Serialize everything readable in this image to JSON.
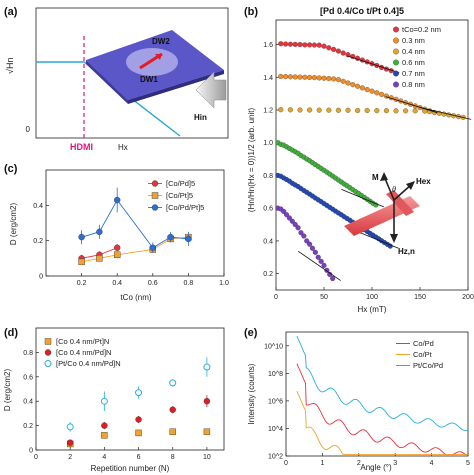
{
  "figure": {
    "panel_labels": [
      "(a)",
      "(b)",
      "(c)",
      "(d)",
      "(e)"
    ]
  },
  "panel_a": {
    "ylabel": "√Hn",
    "zero_label": "0",
    "hdmi_label": "HDMI",
    "xlabel": "Hx",
    "dw1_label": "DW1",
    "dw2_label": "DW2",
    "hin_label": "Hin",
    "colors": {
      "curve": "#29a7d6",
      "dmi_line": "#e0177a",
      "film": "#4a46b8",
      "arrow": "#e31b23"
    }
  },
  "chart_data": [
    {
      "id": "b",
      "type": "scatter",
      "title": "[Pd 0.4/Co t/Pt 0.4]5",
      "xlabel": "Hx (mT)",
      "ylabel": "(Hn/Hn(Hx = 0))1/2 (arb. unit)",
      "xlim": [
        0,
        200
      ],
      "ylim": [
        0.1,
        1.75
      ],
      "xticks": [
        0,
        50,
        100,
        150,
        200
      ],
      "yticks": [
        0.2,
        0.4,
        0.6,
        0.8,
        1.0,
        1.2,
        1.4,
        1.6
      ],
      "legend_position": "top-right",
      "series": [
        {
          "name": "tCo=0.2 nm",
          "color": "#e8323c",
          "x": [
            5,
            10,
            15,
            20,
            25,
            30,
            35,
            40,
            45,
            50,
            55,
            60,
            65,
            70,
            75,
            80,
            85,
            90,
            95,
            100,
            105,
            110,
            115,
            120
          ],
          "y": [
            1.605,
            1.603,
            1.602,
            1.601,
            1.6,
            1.598,
            1.598,
            1.597,
            1.596,
            1.59,
            1.58,
            1.57,
            1.56,
            1.548,
            1.538,
            1.527,
            1.516,
            1.505,
            1.494,
            1.483,
            1.472,
            1.46,
            1.45,
            1.44
          ]
        },
        {
          "name": "0.3 nm",
          "color": "#f08d2a",
          "x": [
            5,
            10,
            15,
            20,
            25,
            30,
            35,
            40,
            45,
            50,
            55,
            60,
            65,
            70,
            75,
            80,
            85,
            90,
            95,
            100,
            105,
            110,
            115,
            120,
            125,
            130,
            135,
            140,
            145,
            150,
            155,
            160
          ],
          "y": [
            1.405,
            1.404,
            1.403,
            1.402,
            1.401,
            1.4,
            1.399,
            1.398,
            1.396,
            1.394,
            1.392,
            1.39,
            1.385,
            1.375,
            1.365,
            1.355,
            1.345,
            1.335,
            1.325,
            1.315,
            1.305,
            1.295,
            1.285,
            1.275,
            1.265,
            1.255,
            1.245,
            1.235,
            1.225,
            1.215,
            1.205,
            1.195
          ]
        },
        {
          "name": "0.4 nm",
          "color": "#e0a52a",
          "x": [
            5,
            15,
            25,
            35,
            45,
            55,
            65,
            75,
            85,
            95,
            105,
            115,
            125,
            135,
            145,
            155,
            160,
            165,
            170,
            175,
            180,
            185,
            190,
            195
          ],
          "y": [
            1.202,
            1.201,
            1.2,
            1.2,
            1.199,
            1.199,
            1.198,
            1.198,
            1.197,
            1.197,
            1.196,
            1.196,
            1.195,
            1.195,
            1.195,
            1.193,
            1.19,
            1.185,
            1.18,
            1.175,
            1.17,
            1.165,
            1.16,
            1.155
          ]
        },
        {
          "name": "0.6 nm",
          "color": "#3fb03a",
          "x": [
            2,
            5,
            8,
            11,
            14,
            17,
            20,
            23,
            26,
            29,
            32,
            35,
            38,
            41,
            44,
            47,
            50,
            53,
            56,
            59,
            62,
            65,
            68,
            71,
            74,
            77,
            80,
            83,
            86,
            89,
            92,
            95,
            98,
            101,
            104
          ],
          "y": [
            1.0,
            0.99,
            0.985,
            0.975,
            0.965,
            0.955,
            0.945,
            0.935,
            0.922,
            0.912,
            0.9,
            0.89,
            0.878,
            0.866,
            0.855,
            0.843,
            0.832,
            0.82,
            0.808,
            0.796,
            0.784,
            0.772,
            0.76,
            0.748,
            0.737,
            0.725,
            0.713,
            0.701,
            0.69,
            0.678,
            0.666,
            0.654,
            0.642,
            0.63,
            0.62
          ]
        },
        {
          "name": "0.7 nm",
          "color": "#2249b8",
          "x": [
            2,
            5,
            8,
            11,
            14,
            17,
            20,
            23,
            26,
            29,
            32,
            35,
            38,
            41,
            44,
            47,
            50,
            53,
            56,
            59,
            62,
            65,
            68,
            71,
            74,
            77,
            80,
            83,
            86,
            89,
            92,
            95,
            98,
            101,
            104,
            107,
            110,
            113,
            116,
            119
          ],
          "y": [
            0.8,
            0.795,
            0.785,
            0.775,
            0.765,
            0.752,
            0.742,
            0.732,
            0.72,
            0.708,
            0.697,
            0.686,
            0.674,
            0.662,
            0.651,
            0.64,
            0.628,
            0.617,
            0.605,
            0.594,
            0.582,
            0.571,
            0.56,
            0.548,
            0.537,
            0.526,
            0.514,
            0.503,
            0.492,
            0.48,
            0.469,
            0.458,
            0.446,
            0.435,
            0.424,
            0.413,
            0.401,
            0.39,
            0.379,
            0.368
          ]
        },
        {
          "name": "0.8 nm",
          "color": "#7a3fc0",
          "x": [
            2,
            5,
            8,
            11,
            14,
            17,
            20,
            23,
            26,
            29,
            32,
            35,
            38,
            41,
            44,
            47,
            50,
            53,
            56,
            59
          ],
          "y": [
            0.6,
            0.595,
            0.58,
            0.56,
            0.54,
            0.52,
            0.5,
            0.48,
            0.45,
            0.43,
            0.4,
            0.38,
            0.355,
            0.33,
            0.3,
            0.275,
            0.25,
            0.22,
            0.195,
            0.17
          ]
        }
      ],
      "annotations": {
        "M": "M",
        "Hex": "Hex",
        "Hx": "Hx",
        "Hzn": "Hz,n",
        "theta": "θ"
      }
    },
    {
      "id": "c",
      "type": "line",
      "xlabel": "tCo (nm)",
      "ylabel": "D (erg/cm2)",
      "xlim": [
        0,
        1.0
      ],
      "ylim": [
        0,
        0.6
      ],
      "xticks": [
        0.2,
        0.4,
        0.6,
        0.8,
        1.0
      ],
      "yticks": [
        0,
        0.2,
        0.4
      ],
      "legend_position": "top-right",
      "series": [
        {
          "name": "[Co/Pd]5",
          "color": "#e8323c",
          "marker": "circle",
          "x": [
            0.2,
            0.3,
            0.4
          ],
          "y": [
            0.1,
            0.12,
            0.16
          ],
          "err": [
            0.02,
            0.02,
            0.02
          ]
        },
        {
          "name": "[Co/Pt]5",
          "color": "#f2a12a",
          "marker": "square",
          "x": [
            0.2,
            0.3,
            0.4,
            0.6,
            0.7,
            0.8
          ],
          "y": [
            0.08,
            0.1,
            0.12,
            0.15,
            0.21,
            0.22
          ],
          "err": [
            0.015,
            0.015,
            0.02,
            0.02,
            0.02,
            0.03
          ]
        },
        {
          "name": "[Co/Pd/Pt]5",
          "color": "#2a6fd6",
          "marker": "circle",
          "x": [
            0.2,
            0.3,
            0.4,
            0.6,
            0.7,
            0.8
          ],
          "y": [
            0.22,
            0.25,
            0.43,
            0.16,
            0.22,
            0.21
          ],
          "err": [
            0.04,
            0.04,
            0.07,
            0.03,
            0.03,
            0.04
          ]
        }
      ]
    },
    {
      "id": "d",
      "type": "scatter",
      "xlabel": "Repetition number (N)",
      "ylabel": "D (erg/cm2)",
      "xlim": [
        0,
        11
      ],
      "ylim": [
        0,
        1.0
      ],
      "xticks": [
        0,
        2,
        4,
        6,
        8,
        10
      ],
      "yticks": [
        0,
        0.2,
        0.4,
        0.6,
        0.8
      ],
      "legend_position": "top-left",
      "series": [
        {
          "name": "[Co 0.4 nm/Pt]N",
          "color": "#f2a12a",
          "marker": "square",
          "x": [
            2,
            4,
            6,
            8,
            10
          ],
          "y": [
            0.05,
            0.12,
            0.14,
            0.15,
            0.15
          ],
          "err": [
            0.01,
            0.01,
            0.01,
            0.01,
            0.01
          ]
        },
        {
          "name": "[Co 0.4 nm/Pd]N",
          "color": "#d9202a",
          "marker": "circle",
          "x": [
            2,
            4,
            6,
            8,
            10
          ],
          "y": [
            0.06,
            0.2,
            0.25,
            0.33,
            0.4
          ],
          "err": [
            0.02,
            0.03,
            0.03,
            0.03,
            0.05
          ]
        },
        {
          "name": "[Pt/Co 0.4 nm/Pd]N",
          "color": "#29aee0",
          "marker": "open-circle",
          "x": [
            2,
            4,
            6,
            8,
            10
          ],
          "y": [
            0.19,
            0.4,
            0.47,
            0.55,
            0.68
          ],
          "err": [
            0.04,
            0.08,
            0.05,
            0.03,
            0.08
          ]
        }
      ]
    },
    {
      "id": "e",
      "type": "line",
      "xlabel": "Angle (°)",
      "ylabel": "Intensity (counts)",
      "xlim": [
        0,
        5
      ],
      "ylim_log10": [
        2,
        11
      ],
      "xticks": [
        0,
        1,
        2,
        3,
        4,
        5
      ],
      "ytick_exponents": [
        2,
        4,
        6,
        8,
        10
      ],
      "ytick_labels": [
        "10^2",
        "10^4",
        "10^6",
        "10^8",
        "10^10"
      ],
      "legend_position": "top-right",
      "series": [
        {
          "name": "Co/Pd",
          "color": "#e8323c",
          "offset_decades": 0
        },
        {
          "name": "Co/Pt",
          "color": "#f2a12a",
          "offset_decades": -2
        },
        {
          "name": "Pt/Co/Pd",
          "color": "#29aee0",
          "offset_decades": 2
        }
      ]
    }
  ]
}
